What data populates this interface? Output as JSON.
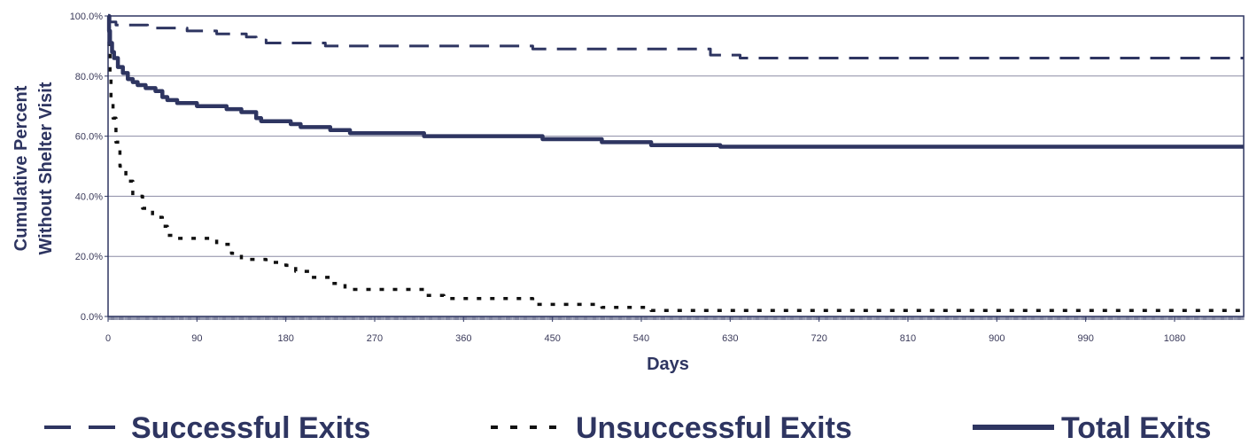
{
  "chart_data": {
    "type": "line",
    "xlabel": "Days",
    "ylabel_lines": [
      "Cumulative Percent",
      "Without Shelter Visit"
    ],
    "xlim": [
      0,
      1150
    ],
    "ylim": [
      0,
      100
    ],
    "x_ticks": [
      0,
      90,
      180,
      270,
      360,
      450,
      540,
      630,
      720,
      810,
      900,
      990,
      1080
    ],
    "x_tick_labels": [
      "0",
      "90",
      "180",
      "270",
      "360",
      "450",
      "540",
      "630",
      "720",
      "810",
      "900",
      "990",
      "1080"
    ],
    "y_ticks": [
      0,
      20,
      40,
      60,
      80,
      100
    ],
    "y_tick_labels": [
      "0.0%",
      "20.0%",
      "40.0%",
      "60.0%",
      "80.0%",
      "100.0%"
    ],
    "grid": "horizontal",
    "legend_position": "bottom",
    "colors": {
      "series": "#2e3561",
      "dark": "#111111",
      "frame": "#2e3561",
      "grid": "#8c8ca4"
    },
    "series": [
      {
        "name": "Successful Exits",
        "style": "dashed",
        "points": [
          [
            0,
            100
          ],
          [
            2,
            98
          ],
          [
            8,
            97
          ],
          [
            30,
            97
          ],
          [
            40,
            96
          ],
          [
            75,
            96
          ],
          [
            80,
            95
          ],
          [
            100,
            95
          ],
          [
            110,
            94
          ],
          [
            130,
            94
          ],
          [
            140,
            93
          ],
          [
            150,
            92
          ],
          [
            160,
            91
          ],
          [
            200,
            91
          ],
          [
            220,
            90
          ],
          [
            420,
            90
          ],
          [
            430,
            89
          ],
          [
            500,
            89
          ],
          [
            600,
            89
          ],
          [
            610,
            87
          ],
          [
            630,
            87
          ],
          [
            640,
            86
          ],
          [
            1150,
            86
          ]
        ]
      },
      {
        "name": "Unsuccessful Exits",
        "style": "dotted",
        "points": [
          [
            0,
            100
          ],
          [
            1,
            90
          ],
          [
            2,
            80
          ],
          [
            3,
            72
          ],
          [
            5,
            66
          ],
          [
            8,
            58
          ],
          [
            12,
            50
          ],
          [
            18,
            45
          ],
          [
            25,
            40
          ],
          [
            35,
            36
          ],
          [
            45,
            33
          ],
          [
            55,
            30
          ],
          [
            60,
            27
          ],
          [
            70,
            26
          ],
          [
            100,
            26
          ],
          [
            110,
            24
          ],
          [
            125,
            21
          ],
          [
            135,
            19
          ],
          [
            160,
            18
          ],
          [
            180,
            17
          ],
          [
            190,
            15
          ],
          [
            205,
            13
          ],
          [
            225,
            11
          ],
          [
            240,
            9
          ],
          [
            310,
            9
          ],
          [
            320,
            7
          ],
          [
            340,
            6
          ],
          [
            420,
            6
          ],
          [
            430,
            4
          ],
          [
            490,
            4
          ],
          [
            500,
            3
          ],
          [
            550,
            2
          ],
          [
            1150,
            2
          ]
        ]
      },
      {
        "name": "Total Exits",
        "style": "solid",
        "points": [
          [
            0,
            100
          ],
          [
            1,
            95
          ],
          [
            2,
            91
          ],
          [
            4,
            88
          ],
          [
            6,
            86
          ],
          [
            10,
            83
          ],
          [
            15,
            81
          ],
          [
            20,
            79
          ],
          [
            25,
            78
          ],
          [
            30,
            77
          ],
          [
            38,
            76
          ],
          [
            48,
            75
          ],
          [
            55,
            73
          ],
          [
            60,
            72
          ],
          [
            70,
            71
          ],
          [
            90,
            70
          ],
          [
            110,
            70
          ],
          [
            120,
            69
          ],
          [
            135,
            68
          ],
          [
            150,
            66
          ],
          [
            155,
            65
          ],
          [
            185,
            64
          ],
          [
            195,
            63
          ],
          [
            220,
            63
          ],
          [
            225,
            62
          ],
          [
            245,
            61
          ],
          [
            300,
            61
          ],
          [
            320,
            60
          ],
          [
            430,
            60
          ],
          [
            440,
            59
          ],
          [
            500,
            58
          ],
          [
            520,
            58
          ],
          [
            540,
            58
          ],
          [
            550,
            57
          ],
          [
            610,
            57
          ],
          [
            620,
            56.5
          ],
          [
            1150,
            56.5
          ]
        ]
      }
    ]
  }
}
